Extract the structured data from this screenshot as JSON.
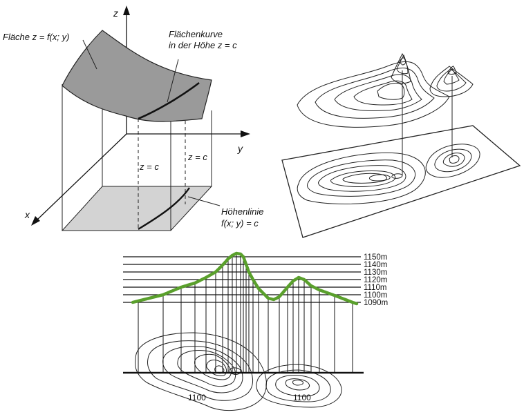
{
  "panel_surface": {
    "surface_label": "Fläche z = f(x; y)",
    "curve_label_line1": "Flächenkurve",
    "curve_label_line2": "in der Höhe z = c",
    "axis_x": "x",
    "axis_y": "y",
    "axis_z": "z",
    "z_eq_c_left": "z = c",
    "z_eq_c_right": "z = c",
    "level_label_line1": "Höhenlinie",
    "level_label_line2": "f(x; y) = c",
    "colors": {
      "surface": "#9a9a9a",
      "floor": "#d3d3d3",
      "curve": "#111111"
    }
  },
  "panel_profile": {
    "elevations": [
      "1150m",
      "1140m",
      "1130m",
      "1120m",
      "1110m",
      "1100m",
      "1090m"
    ],
    "contour_labels": [
      "1100",
      "1100"
    ],
    "colors": {
      "profile": "#5aa02c"
    }
  }
}
